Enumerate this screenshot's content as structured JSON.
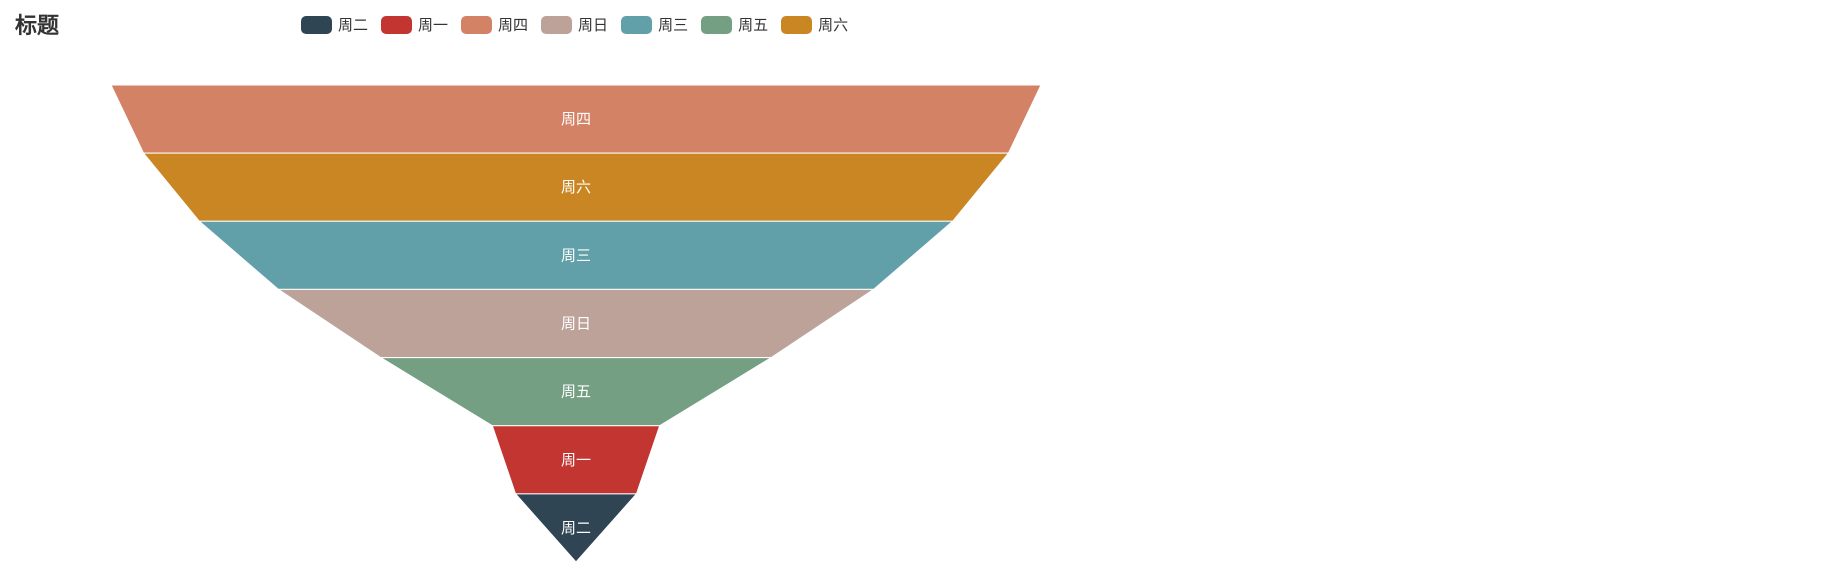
{
  "title": "标题",
  "chart_data": {
    "type": "funnel",
    "title": "标题",
    "sort": "descending",
    "legend": {
      "position": "top",
      "items": [
        "周二",
        "周一",
        "周四",
        "周日",
        "周三",
        "周五",
        "周六"
      ]
    },
    "categories": [
      "周四",
      "周六",
      "周三",
      "周日",
      "周五",
      "周一",
      "周二"
    ],
    "values": [
      100,
      93,
      81,
      64,
      42,
      18,
      13
    ],
    "colors": {
      "周二": "#2f4554",
      "周一": "#c23531",
      "周四": "#d48265",
      "周日": "#bda29a",
      "周三": "#61a0a8",
      "周五": "#749f83",
      "周六": "#ca8622"
    }
  }
}
